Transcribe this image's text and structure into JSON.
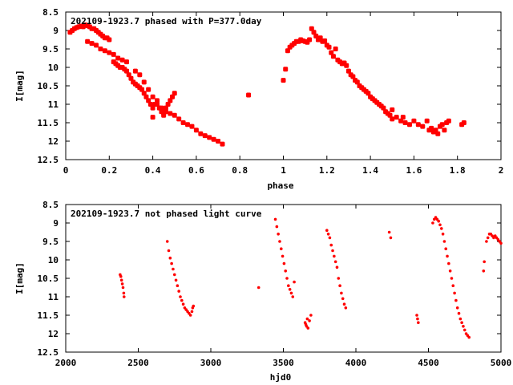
{
  "chart_data": [
    {
      "type": "scatter",
      "title": "202109-1923.7 phased with P=377.0day",
      "xlabel": "phase",
      "ylabel": "I[mag]",
      "xlim": [
        0,
        2
      ],
      "ylim": [
        12.5,
        8.5
      ],
      "y_inverted": true,
      "grid": false,
      "legend": "none",
      "marker_color": "#ff0000",
      "xticks": [
        "0",
        "0.2",
        "0.4",
        "0.6",
        "0.8",
        "1",
        "1.2",
        "1.4",
        "1.6",
        "1.8",
        "2"
      ],
      "yticks": [
        "8.5",
        "9",
        "9.5",
        "10",
        "10.5",
        "11",
        "11.5",
        "12",
        "12.5"
      ],
      "series": [
        {
          "x": [
            0.02,
            0.03,
            0.04,
            0.05,
            0.06,
            0.07,
            0.08,
            0.09,
            0.1,
            0.11,
            0.12,
            0.13,
            0.14,
            0.15,
            0.16,
            0.17,
            0.18,
            0.19,
            0.2,
            0.1,
            0.12,
            0.14,
            0.16,
            0.18,
            0.2,
            0.22,
            0.24,
            0.26,
            0.28,
            0.22,
            0.23,
            0.24,
            0.25,
            0.26,
            0.27,
            0.28,
            0.29,
            0.3,
            0.31,
            0.32,
            0.33,
            0.34,
            0.35,
            0.36,
            0.37,
            0.38,
            0.39,
            0.4,
            0.41,
            0.42,
            0.43,
            0.44,
            0.45,
            0.46,
            0.47,
            0.48,
            0.49,
            0.5,
            0.32,
            0.34,
            0.36,
            0.38,
            0.4,
            0.42,
            0.44,
            0.46,
            0.48,
            0.5,
            0.52,
            0.54,
            0.56,
            0.58,
            0.6,
            0.62,
            0.64,
            0.66,
            0.68,
            0.7,
            0.72,
            0.4,
            0.45,
            0.84,
            1.0,
            1.01,
            1.02,
            1.03,
            1.04,
            1.05,
            1.06,
            1.07,
            1.08,
            1.09,
            1.1,
            1.11,
            1.12,
            1.13,
            1.14,
            1.15,
            1.16,
            1.17,
            1.18,
            1.19,
            1.2,
            1.21,
            1.22,
            1.23,
            1.24,
            1.25,
            1.26,
            1.27,
            1.28,
            1.29,
            1.3,
            1.31,
            1.32,
            1.33,
            1.34,
            1.35,
            1.36,
            1.37,
            1.38,
            1.39,
            1.4,
            1.41,
            1.42,
            1.43,
            1.44,
            1.45,
            1.46,
            1.47,
            1.48,
            1.49,
            1.5,
            1.52,
            1.54,
            1.56,
            1.58,
            1.6,
            1.62,
            1.64,
            1.66,
            1.67,
            1.68,
            1.69,
            1.7,
            1.71,
            1.72,
            1.73,
            1.74,
            1.75,
            1.76,
            1.82,
            1.83,
            1.5,
            1.55
          ],
          "y": [
            9.05,
            9.0,
            8.95,
            8.92,
            8.9,
            8.88,
            8.9,
            8.85,
            8.87,
            8.9,
            8.95,
            8.95,
            9.0,
            9.05,
            9.1,
            9.15,
            9.2,
            9.2,
            9.25,
            9.3,
            9.35,
            9.4,
            9.5,
            9.55,
            9.6,
            9.65,
            9.75,
            9.8,
            9.85,
            9.85,
            9.9,
            9.95,
            10.0,
            10.0,
            10.05,
            10.1,
            10.2,
            10.3,
            10.4,
            10.45,
            10.5,
            10.55,
            10.6,
            10.7,
            10.8,
            10.9,
            11.0,
            11.1,
            11.0,
            10.9,
            11.1,
            11.2,
            11.3,
            11.1,
            11.0,
            10.9,
            10.8,
            10.7,
            10.1,
            10.2,
            10.4,
            10.6,
            10.8,
            11.0,
            11.1,
            11.2,
            11.25,
            11.3,
            11.4,
            11.5,
            11.55,
            11.6,
            11.7,
            11.8,
            11.85,
            11.9,
            11.95,
            12.0,
            12.08,
            11.35,
            11.25,
            10.75,
            10.35,
            10.05,
            9.55,
            9.45,
            9.4,
            9.35,
            9.3,
            9.3,
            9.25,
            9.28,
            9.3,
            9.32,
            9.25,
            8.95,
            9.05,
            9.15,
            9.25,
            9.2,
            9.3,
            9.28,
            9.4,
            9.45,
            9.6,
            9.7,
            9.5,
            9.8,
            9.85,
            9.9,
            9.88,
            9.95,
            10.1,
            10.2,
            10.25,
            10.35,
            10.4,
            10.5,
            10.55,
            10.6,
            10.65,
            10.7,
            10.8,
            10.85,
            10.9,
            10.95,
            11.0,
            11.05,
            11.1,
            11.2,
            11.25,
            11.3,
            11.4,
            11.35,
            11.45,
            11.5,
            11.55,
            11.45,
            11.55,
            11.6,
            11.45,
            11.7,
            11.65,
            11.75,
            11.7,
            11.8,
            11.6,
            11.55,
            11.7,
            11.5,
            11.45,
            11.55,
            11.5,
            11.15,
            11.35
          ]
        }
      ]
    },
    {
      "type": "scatter",
      "title": "202109-1923.7 not phased light curve",
      "xlabel": "hjd0",
      "ylabel": "I[mag]",
      "xlim": [
        2000,
        5000
      ],
      "ylim": [
        12.5,
        8.5
      ],
      "y_inverted": true,
      "grid": false,
      "legend": "none",
      "marker_color": "#ff0000",
      "xticks": [
        "2000",
        "2500",
        "3000",
        "3500",
        "4000",
        "4500",
        "5000"
      ],
      "yticks": [
        "8.5",
        "9",
        "9.5",
        "10",
        "10.5",
        "11",
        "11.5",
        "12",
        "12.5"
      ],
      "series": [
        {
          "x": [
            2375,
            2380,
            2385,
            2390,
            2395,
            2400,
            2402,
            2700,
            2710,
            2720,
            2730,
            2740,
            2750,
            2760,
            2770,
            2780,
            2790,
            2800,
            2810,
            2820,
            2830,
            2840,
            2850,
            2860,
            2870,
            2875,
            2880,
            3330,
            3445,
            3455,
            3465,
            3475,
            3485,
            3495,
            3505,
            3515,
            3525,
            3535,
            3545,
            3555,
            3565,
            3575,
            3650,
            3655,
            3660,
            3665,
            3670,
            3680,
            3690,
            3800,
            3810,
            3820,
            3830,
            3840,
            3850,
            3860,
            3870,
            3880,
            3890,
            3900,
            3910,
            3920,
            3930,
            4230,
            4240,
            4420,
            4425,
            4430,
            4530,
            4540,
            4550,
            4560,
            4570,
            4580,
            4590,
            4600,
            4610,
            4620,
            4630,
            4640,
            4650,
            4660,
            4670,
            4680,
            4690,
            4700,
            4710,
            4720,
            4730,
            4740,
            4750,
            4760,
            4770,
            4780,
            4880,
            4885,
            4900,
            4910,
            4920,
            4930,
            4940,
            4950,
            4960,
            4970,
            4980,
            4990,
            5000
          ],
          "y": [
            10.4,
            10.45,
            10.55,
            10.65,
            10.75,
            10.9,
            11.0,
            9.5,
            9.75,
            9.95,
            10.1,
            10.25,
            10.4,
            10.55,
            10.7,
            10.85,
            11.0,
            11.1,
            11.2,
            11.3,
            11.35,
            11.4,
            11.45,
            11.5,
            11.4,
            11.3,
            11.25,
            10.75,
            8.9,
            9.1,
            9.3,
            9.5,
            9.7,
            9.9,
            10.1,
            10.3,
            10.5,
            10.7,
            10.8,
            10.9,
            11.0,
            10.6,
            11.7,
            11.75,
            11.8,
            11.6,
            11.85,
            11.65,
            11.5,
            9.2,
            9.3,
            9.4,
            9.6,
            9.75,
            9.9,
            10.05,
            10.2,
            10.5,
            10.7,
            10.9,
            11.05,
            11.2,
            11.3,
            9.25,
            9.4,
            11.5,
            11.6,
            11.7,
            9.0,
            8.9,
            8.85,
            8.9,
            8.95,
            9.05,
            9.15,
            9.3,
            9.5,
            9.7,
            9.9,
            10.1,
            10.3,
            10.5,
            10.7,
            10.9,
            11.1,
            11.3,
            11.45,
            11.6,
            11.7,
            11.8,
            11.9,
            12.0,
            12.05,
            12.1,
            10.3,
            10.05,
            9.5,
            9.4,
            9.3,
            9.3,
            9.35,
            9.4,
            9.35,
            9.4,
            9.45,
            9.5,
            9.55
          ]
        }
      ]
    }
  ]
}
